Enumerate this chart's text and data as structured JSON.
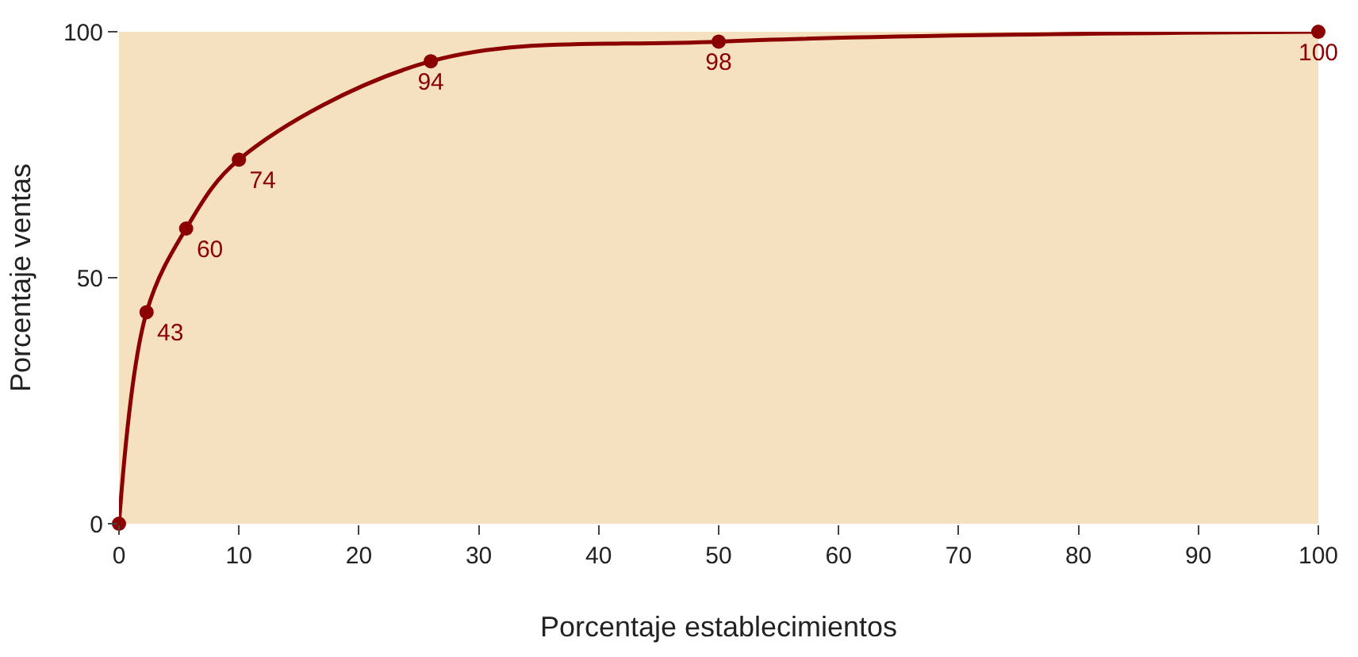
{
  "chart_data": {
    "type": "line",
    "xlabel": "Porcentaje establecimientos",
    "ylabel": "Porcentaje ventas",
    "x": [
      0,
      2.3,
      5.6,
      10,
      26,
      50,
      100
    ],
    "series": [
      {
        "color": "#8b0000",
        "values": [
          0,
          43,
          60,
          74,
          94,
          98,
          100
        ],
        "value_labels": [
          null,
          "43",
          "60",
          "74",
          "94",
          "98",
          "100"
        ]
      }
    ],
    "xlim": [
      0,
      100
    ],
    "xticks": [
      0,
      10,
      20,
      30,
      40,
      50,
      60,
      70,
      80,
      90,
      100
    ],
    "ylim": [
      0,
      100
    ],
    "yticks": [
      0,
      50,
      100
    ],
    "grid": false,
    "legend": false,
    "marker": "circle",
    "line_style": "solid"
  }
}
